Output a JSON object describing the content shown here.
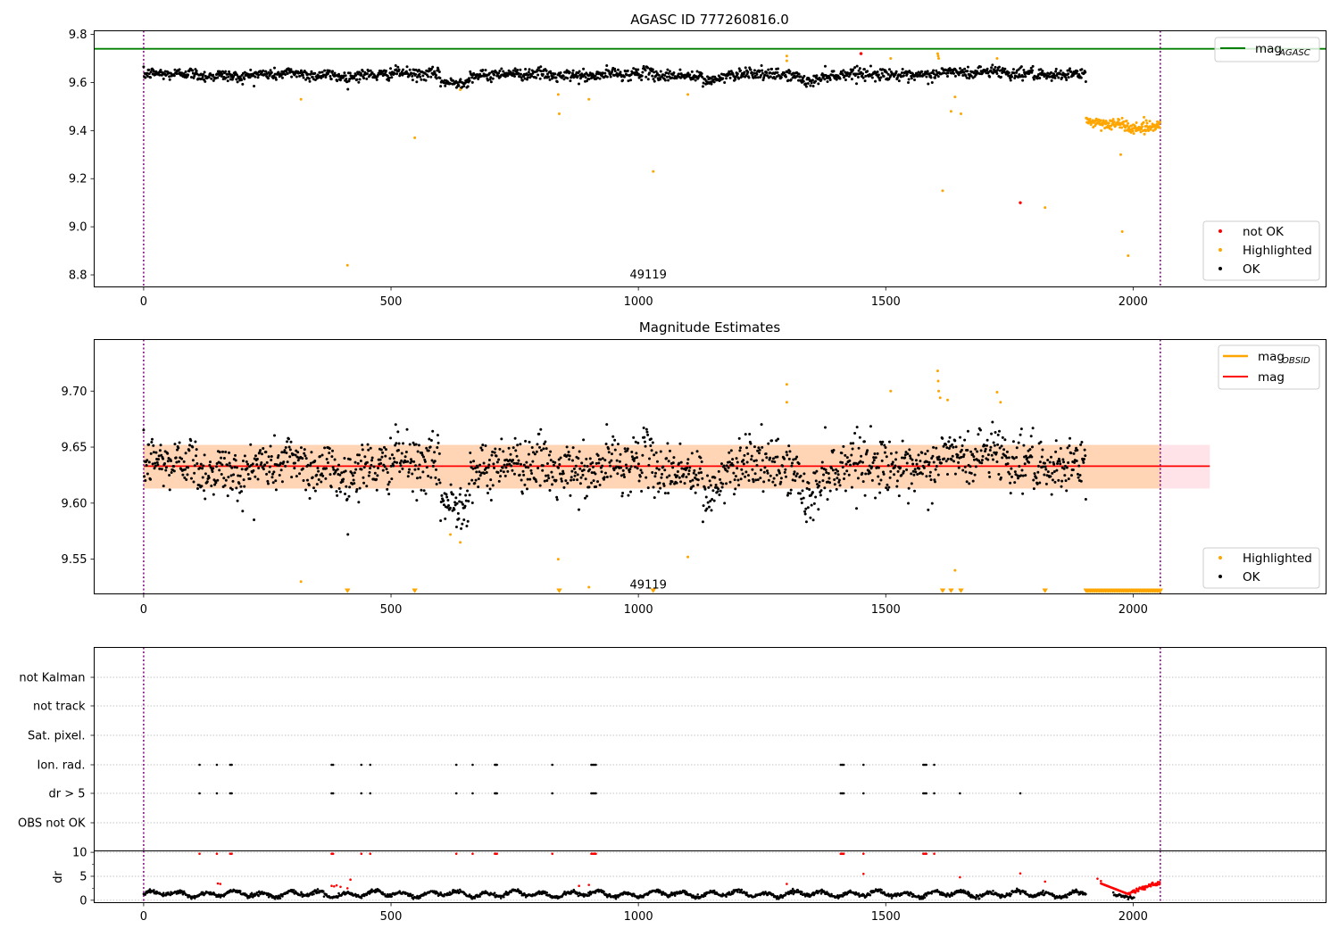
{
  "chart_data": [
    {
      "type": "scatter",
      "title": "AGASC ID 777260816.0",
      "xlabel": "",
      "ylabel": "",
      "xlim": [
        -100,
        2390
      ],
      "ylim": [
        8.75,
        9.815
      ],
      "xticks": [
        0,
        500,
        1000,
        1500,
        2000
      ],
      "yticks": [
        8.8,
        9.0,
        9.2,
        9.4,
        9.6,
        9.8
      ],
      "hlines": [
        {
          "name": "mag_AGASC",
          "value": 9.74,
          "color": "#008000"
        }
      ],
      "vlines": [
        {
          "value": 0,
          "color": "#800080"
        },
        {
          "value": 2055,
          "color": "#800080"
        }
      ],
      "annotations": [
        {
          "text": "49119",
          "x": 1020,
          "y": 8.8
        }
      ],
      "legends": [
        {
          "placement": "upper right",
          "entries": [
            {
              "label": "mag",
              "sub": "AGASC",
              "color": "#008000",
              "kind": "line"
            }
          ]
        },
        {
          "placement": "lower right",
          "entries": [
            {
              "label": "not OK",
              "color": "#ff0000",
              "kind": "dot"
            },
            {
              "label": "Highlighted",
              "color": "#ffa500",
              "kind": "dot"
            },
            {
              "label": "OK",
              "color": "#000000",
              "kind": "dot"
            }
          ]
        }
      ],
      "series": [
        {
          "name": "OK",
          "color": "#000000",
          "model": "mag_ok",
          "x_range": [
            0,
            1905
          ]
        },
        {
          "name": "Highlighted",
          "color": "#ffa500",
          "points": [
            [
              318,
              9.53
            ],
            [
              548,
              9.37
            ],
            [
              412,
              8.84
            ],
            [
              640,
              9.57
            ],
            [
              838,
              9.55
            ],
            [
              840,
              9.47
            ],
            [
              900,
              9.53
            ],
            [
              1030,
              9.23
            ],
            [
              1100,
              9.55
            ],
            [
              1300,
              9.71
            ],
            [
              1300,
              9.69
            ],
            [
              1510,
              9.7
            ],
            [
              1605,
              9.72
            ],
            [
              1606,
              9.71
            ],
            [
              1607,
              9.7
            ],
            [
              1615,
              9.15
            ],
            [
              1632,
              9.48
            ],
            [
              1640,
              9.54
            ],
            [
              1652,
              9.47
            ],
            [
              1725,
              9.7
            ],
            [
              1822,
              9.08
            ],
            [
              1975,
              9.3
            ],
            [
              1978,
              8.98
            ],
            [
              1990,
              8.88
            ]
          ]
        },
        {
          "name": "Highlighted late",
          "color": "#ffa500",
          "model": "mag_late",
          "x_range": [
            1905,
            2055
          ]
        },
        {
          "name": "not OK",
          "color": "#ff0000",
          "points": [
            [
              1450,
              9.72
            ],
            [
              1772,
              9.1
            ]
          ]
        }
      ]
    },
    {
      "type": "scatter",
      "title": "Magnitude Estimates",
      "xlabel": "",
      "ylabel": "",
      "xlim": [
        -100,
        2390
      ],
      "ylim": [
        9.519,
        9.746
      ],
      "xticks": [
        0,
        500,
        1000,
        1500,
        2000
      ],
      "yticks": [
        9.55,
        9.6,
        9.65,
        9.7
      ],
      "hlines": [
        {
          "name": "mag",
          "value": 9.633,
          "color": "#ff0000",
          "xrange": [
            0,
            2155
          ]
        }
      ],
      "bands": [
        {
          "value_range": [
            9.613,
            9.652
          ],
          "xrange": [
            0,
            2155
          ],
          "color": "#ffc0cb"
        },
        {
          "value_range": [
            9.613,
            9.652
          ],
          "xrange": [
            0,
            2055
          ],
          "color": "#ffa500"
        }
      ],
      "vlines": [
        {
          "value": 0,
          "color": "#800080"
        },
        {
          "value": 2055,
          "color": "#800080"
        }
      ],
      "annotations": [
        {
          "text": "49119",
          "x": 1020,
          "y": 9.527
        }
      ],
      "legends": [
        {
          "placement": "upper right",
          "entries": [
            {
              "label": "mag",
              "sub": "OBSID",
              "color": "#ffa500",
              "kind": "line"
            },
            {
              "label": "mag",
              "sub": "",
              "color": "#ff0000",
              "kind": "line"
            }
          ]
        },
        {
          "placement": "lower right",
          "entries": [
            {
              "label": "Highlighted",
              "color": "#ffa500",
              "kind": "dot"
            },
            {
              "label": "OK",
              "color": "#000000",
              "kind": "dot"
            }
          ]
        }
      ],
      "series": [
        {
          "name": "OK",
          "color": "#000000",
          "model": "mag_ok",
          "x_range": [
            0,
            1905
          ]
        },
        {
          "name": "Highlighted",
          "color": "#ffa500",
          "points": [
            [
              318,
              9.53
            ],
            [
              838,
              9.55
            ],
            [
              900,
              9.525
            ],
            [
              1100,
              9.552
            ],
            [
              1300,
              9.706
            ],
            [
              1300,
              9.69
            ],
            [
              1510,
              9.7
            ],
            [
              1605,
              9.718
            ],
            [
              1606,
              9.709
            ],
            [
              1607,
              9.7
            ],
            [
              1610,
              9.694
            ],
            [
              1625,
              9.692
            ],
            [
              1640,
              9.54
            ],
            [
              1725,
              9.699
            ],
            [
              1732,
              9.69
            ],
            [
              620,
              9.572
            ],
            [
              640,
              9.565
            ]
          ]
        },
        {
          "name": "Highlighted (below axis)",
          "color": "#ffa500",
          "marker": "triangle-down",
          "x": [
            412,
            548,
            840,
            1030,
            1615,
            1632,
            1652,
            1822
          ],
          "x_range_dense": [
            1905,
            2055
          ]
        }
      ]
    },
    {
      "type": "scatter",
      "title": "",
      "xlabel": "",
      "ylabel": "",
      "xlim": [
        -100,
        2390
      ],
      "categories": [
        "not Kalman",
        "not track",
        "Sat. pixel.",
        "Ion. rad.",
        "dr > 5",
        "OBS not OK"
      ],
      "vlines": [
        {
          "value": 0,
          "color": "#800080"
        },
        {
          "value": 2055,
          "color": "#800080"
        }
      ],
      "series": [
        {
          "name": "Ion. rad.",
          "color": "#000000",
          "x": [
            113,
            148,
            175,
            178,
            380,
            383,
            440,
            458,
            632,
            665,
            710,
            712,
            714,
            826,
            905,
            908,
            911,
            914,
            1409,
            1412,
            1415,
            1455,
            1576,
            1579,
            1582,
            1598
          ]
        },
        {
          "name": "dr > 5",
          "color": "#000000",
          "x": [
            113,
            148,
            175,
            178,
            380,
            383,
            440,
            458,
            632,
            665,
            710,
            712,
            714,
            826,
            905,
            908,
            911,
            914,
            1409,
            1412,
            1415,
            1455,
            1576,
            1579,
            1582,
            1598,
            1650,
            1772
          ]
        }
      ]
    },
    {
      "type": "scatter",
      "title": "",
      "xlabel": "",
      "ylabel": "dr",
      "xlim": [
        -100,
        2390
      ],
      "ylim": [
        -0.5,
        10.3
      ],
      "xticks": [
        0,
        500,
        1000,
        1500,
        2000
      ],
      "yticks": [
        0,
        5,
        10
      ],
      "vlines": [
        {
          "value": 0,
          "color": "#800080"
        },
        {
          "value": 2055,
          "color": "#800080"
        }
      ],
      "series": [
        {
          "name": "OK",
          "color": "#000000",
          "model": "dr_ok",
          "x_range": [
            0,
            1905
          ]
        },
        {
          "name": "not OK",
          "color": "#ff0000",
          "points": [
            [
              113,
              9.7
            ],
            [
              148,
              9.7
            ],
            [
              175,
              9.7
            ],
            [
              178,
              9.7
            ],
            [
              380,
              9.7
            ],
            [
              383,
              9.7
            ],
            [
              440,
              9.7
            ],
            [
              458,
              9.7
            ],
            [
              632,
              9.7
            ],
            [
              665,
              9.7
            ],
            [
              710,
              9.7
            ],
            [
              712,
              9.7
            ],
            [
              714,
              9.7
            ],
            [
              826,
              9.7
            ],
            [
              905,
              9.7
            ],
            [
              908,
              9.7
            ],
            [
              911,
              9.7
            ],
            [
              914,
              9.7
            ],
            [
              1409,
              9.7
            ],
            [
              1412,
              9.7
            ],
            [
              1415,
              9.7
            ],
            [
              1455,
              9.7
            ],
            [
              1576,
              9.7
            ],
            [
              1579,
              9.7
            ],
            [
              1582,
              9.7
            ],
            [
              1598,
              9.7
            ],
            [
              150,
              3.5
            ],
            [
              155,
              3.4
            ],
            [
              380,
              3.0
            ],
            [
              385,
              2.9
            ],
            [
              390,
              3.1
            ],
            [
              398,
              2.8
            ],
            [
              412,
              2.5
            ],
            [
              418,
              4.3
            ],
            [
              880,
              3.0
            ],
            [
              900,
              3.2
            ],
            [
              1300,
              3.4
            ],
            [
              1455,
              5.5
            ],
            [
              1650,
              4.8
            ],
            [
              1772,
              5.6
            ],
            [
              1822,
              3.9
            ],
            [
              1928,
              4.5
            ],
            [
              1935,
              4.0
            ]
          ]
        },
        {
          "name": "not OK late",
          "color": "#ff0000",
          "model": "dr_late",
          "x_range": [
            1935,
            2055
          ]
        }
      ]
    }
  ]
}
